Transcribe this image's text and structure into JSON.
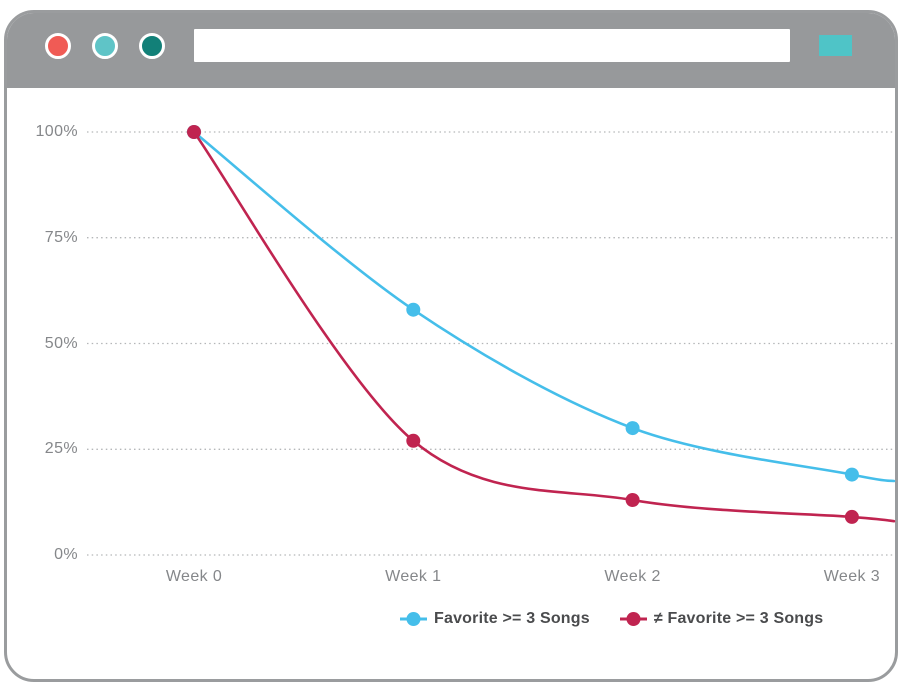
{
  "browser": {
    "traffic_lights": [
      {
        "name": "red",
        "color": "#F05B55"
      },
      {
        "name": "teal-light",
        "color": "#5FC4C7"
      },
      {
        "name": "teal-dark",
        "color": "#128078"
      }
    ],
    "url_value": "",
    "action_button_color": "#4FC4C7"
  },
  "chart_data": {
    "type": "line",
    "title": "",
    "xlabel": "",
    "ylabel": "",
    "categories": [
      "Week 0",
      "Week 1",
      "Week 2",
      "Week 3"
    ],
    "series": [
      {
        "name": "Favorite >= 3 Songs",
        "color": "#45BEEA",
        "values": [
          100,
          58,
          30,
          19
        ],
        "trail_value": 17.5
      },
      {
        "name": "≠ Favorite >= 3 Songs",
        "color": "#C02450",
        "values": [
          100,
          27,
          13,
          9
        ],
        "trail_value": 8
      }
    ],
    "y_ticks": [
      {
        "label": "100%",
        "value": 100
      },
      {
        "label": "75%",
        "value": 75
      },
      {
        "label": "50%",
        "value": 50
      },
      {
        "label": "25%",
        "value": 25
      },
      {
        "label": "0%",
        "value": 0
      }
    ],
    "ylim": [
      0,
      100
    ],
    "grid": "horizontal-dotted",
    "gridline_color": "#B4B6B8",
    "legend_position": "bottom-center"
  }
}
